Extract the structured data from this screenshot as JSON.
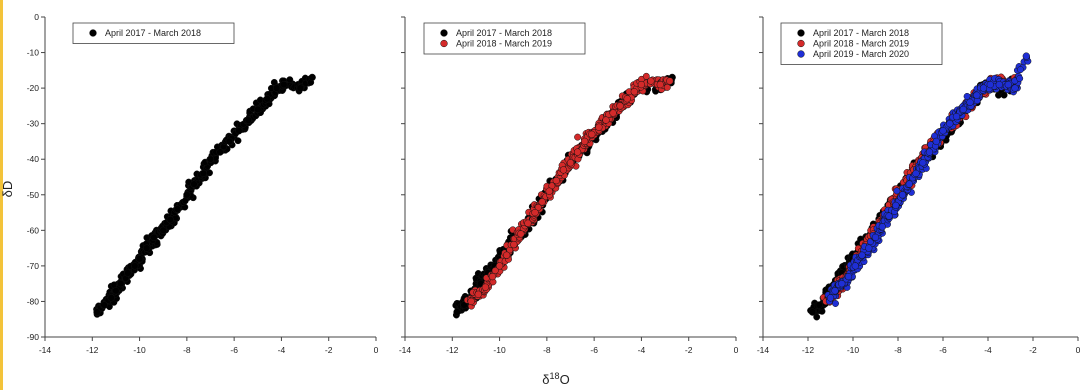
{
  "figure": {
    "ylabel": "δD",
    "xlabel_main": "δ",
    "xlabel_sup": "18",
    "xlabel_tail": "O"
  },
  "colors": {
    "April 2017 - March 2018": "#000000",
    "April 2018 - March 2019": "#d42a2a",
    "April 2019 - March 2020": "#1f2fd6"
  },
  "chart_data": [
    {
      "type": "scatter",
      "xlim": [
        -14,
        0
      ],
      "ylim": [
        -90,
        0
      ],
      "xticks": [
        -14,
        -12,
        -10,
        -8,
        -6,
        -4,
        -2,
        0
      ],
      "yticks": [
        0,
        -10,
        -20,
        -30,
        -40,
        -50,
        -60,
        -70,
        -80,
        -90
      ],
      "legend_position": "top-left",
      "series": [
        {
          "name": "April 2017 - March 2018",
          "color": "#000000",
          "x": [
            -11.8,
            -11.5,
            -11.2,
            -11.0,
            -10.8,
            -10.5,
            -10.2,
            -10.0,
            -9.7,
            -9.4,
            -9.0,
            -8.7,
            -8.4,
            -8.0,
            -7.7,
            -7.3,
            -7.0,
            -6.6,
            -6.2,
            -5.8,
            -5.4,
            -5.0,
            -4.6,
            -4.2,
            -3.9,
            -3.2,
            -2.7
          ],
          "y": [
            -83,
            -81,
            -79,
            -77,
            -75,
            -72,
            -70,
            -68,
            -65,
            -62,
            -60,
            -57,
            -54,
            -50,
            -47,
            -44,
            -40,
            -38,
            -35,
            -32,
            -29,
            -26,
            -23,
            -20,
            -19,
            -20,
            -17
          ]
        }
      ]
    },
    {
      "type": "scatter",
      "xlim": [
        -14,
        0
      ],
      "ylim": [
        -90,
        0
      ],
      "xticks": [
        -14,
        -12,
        -10,
        -8,
        -6,
        -4,
        -2,
        0
      ],
      "yticks": [
        0,
        -10,
        -20,
        -30,
        -40,
        -50,
        -60,
        -70,
        -80,
        -90
      ],
      "legend_position": "top-left",
      "series": [
        {
          "name": "April 2017 - March 2018",
          "color": "#000000",
          "x": [
            -11.8,
            -11.5,
            -11.2,
            -11.0,
            -10.8,
            -10.5,
            -10.2,
            -10.0,
            -9.7,
            -9.4,
            -9.0,
            -8.7,
            -8.4,
            -8.0,
            -7.7,
            -7.3,
            -7.0,
            -6.6,
            -6.2,
            -5.8,
            -5.4,
            -5.0,
            -4.6,
            -4.2,
            -3.9,
            -3.2,
            -2.7
          ],
          "y": [
            -83,
            -81,
            -79,
            -77,
            -75,
            -72,
            -70,
            -68,
            -65,
            -62,
            -60,
            -57,
            -54,
            -50,
            -47,
            -44,
            -40,
            -38,
            -35,
            -32,
            -29,
            -26,
            -23,
            -20,
            -19,
            -20,
            -17
          ]
        },
        {
          "name": "April 2018 - March 2019",
          "color": "#d42a2a",
          "x": [
            -11.2,
            -10.9,
            -10.6,
            -10.3,
            -10.0,
            -9.7,
            -9.4,
            -9.1,
            -8.8,
            -8.5,
            -8.2,
            -7.9,
            -7.6,
            -7.3,
            -7.0,
            -6.7,
            -6.4,
            -6.1,
            -5.8,
            -5.5,
            -5.2,
            -4.9,
            -4.6,
            -4.3,
            -4.0,
            -3.6,
            -3.2,
            -2.8
          ],
          "y": [
            -80,
            -78,
            -76,
            -73,
            -70,
            -67,
            -64,
            -61,
            -58,
            -55,
            -52,
            -49,
            -46,
            -43,
            -41,
            -38,
            -35,
            -33,
            -31,
            -29,
            -27,
            -25,
            -23,
            -21,
            -19,
            -18,
            -19,
            -18
          ]
        }
      ]
    },
    {
      "type": "scatter",
      "xlim": [
        -14,
        0
      ],
      "ylim": [
        -90,
        0
      ],
      "xticks": [
        -14,
        -12,
        -10,
        -8,
        -6,
        -4,
        -2,
        0
      ],
      "yticks": [
        0,
        -10,
        -20,
        -30,
        -40,
        -50,
        -60,
        -70,
        -80,
        -90
      ],
      "legend_position": "top-left",
      "series": [
        {
          "name": "April 2017 - March 2018",
          "color": "#000000",
          "x": [
            -11.8,
            -11.5,
            -11.2,
            -11.0,
            -10.8,
            -10.5,
            -10.2,
            -10.0,
            -9.7,
            -9.4,
            -9.0,
            -8.7,
            -8.4,
            -8.0,
            -7.7,
            -7.3,
            -7.0,
            -6.6,
            -6.2,
            -5.8,
            -5.4,
            -5.0,
            -4.6,
            -4.2,
            -3.9,
            -3.2,
            -2.7
          ],
          "y": [
            -83,
            -81,
            -79,
            -77,
            -75,
            -72,
            -70,
            -68,
            -65,
            -62,
            -60,
            -57,
            -54,
            -50,
            -47,
            -44,
            -40,
            -38,
            -35,
            -32,
            -29,
            -26,
            -23,
            -20,
            -19,
            -20,
            -17
          ]
        },
        {
          "name": "April 2018 - March 2019",
          "color": "#d42a2a",
          "x": [
            -11.2,
            -10.9,
            -10.6,
            -10.3,
            -10.0,
            -9.7,
            -9.4,
            -9.1,
            -8.8,
            -8.5,
            -8.2,
            -7.9,
            -7.6,
            -7.3,
            -7.0,
            -6.7,
            -6.4,
            -6.1,
            -5.8,
            -5.5,
            -5.2,
            -4.9,
            -4.6,
            -4.3,
            -4.0,
            -3.6,
            -3.2,
            -2.8
          ],
          "y": [
            -80,
            -78,
            -76,
            -73,
            -70,
            -67,
            -64,
            -61,
            -58,
            -55,
            -52,
            -49,
            -46,
            -43,
            -41,
            -38,
            -35,
            -33,
            -31,
            -29,
            -27,
            -25,
            -23,
            -21,
            -19,
            -18,
            -19,
            -18
          ]
        },
        {
          "name": "April 2019 - March 2020",
          "color": "#1f2fd6",
          "x": [
            -11.0,
            -10.8,
            -10.5,
            -10.2,
            -9.9,
            -9.6,
            -9.3,
            -9.0,
            -8.7,
            -8.4,
            -8.1,
            -7.8,
            -7.5,
            -7.2,
            -6.9,
            -6.6,
            -6.3,
            -6.0,
            -5.7,
            -5.4,
            -5.1,
            -4.8,
            -4.5,
            -4.2,
            -3.9,
            -3.5,
            -3.1,
            -2.8,
            -2.3
          ],
          "y": [
            -79,
            -77,
            -75,
            -73,
            -70,
            -67,
            -65,
            -62,
            -59,
            -56,
            -53,
            -50,
            -47,
            -44,
            -41,
            -38,
            -35,
            -32,
            -30,
            -28,
            -26,
            -24,
            -22,
            -20,
            -19,
            -19,
            -19,
            -20,
            -11
          ]
        }
      ]
    }
  ]
}
